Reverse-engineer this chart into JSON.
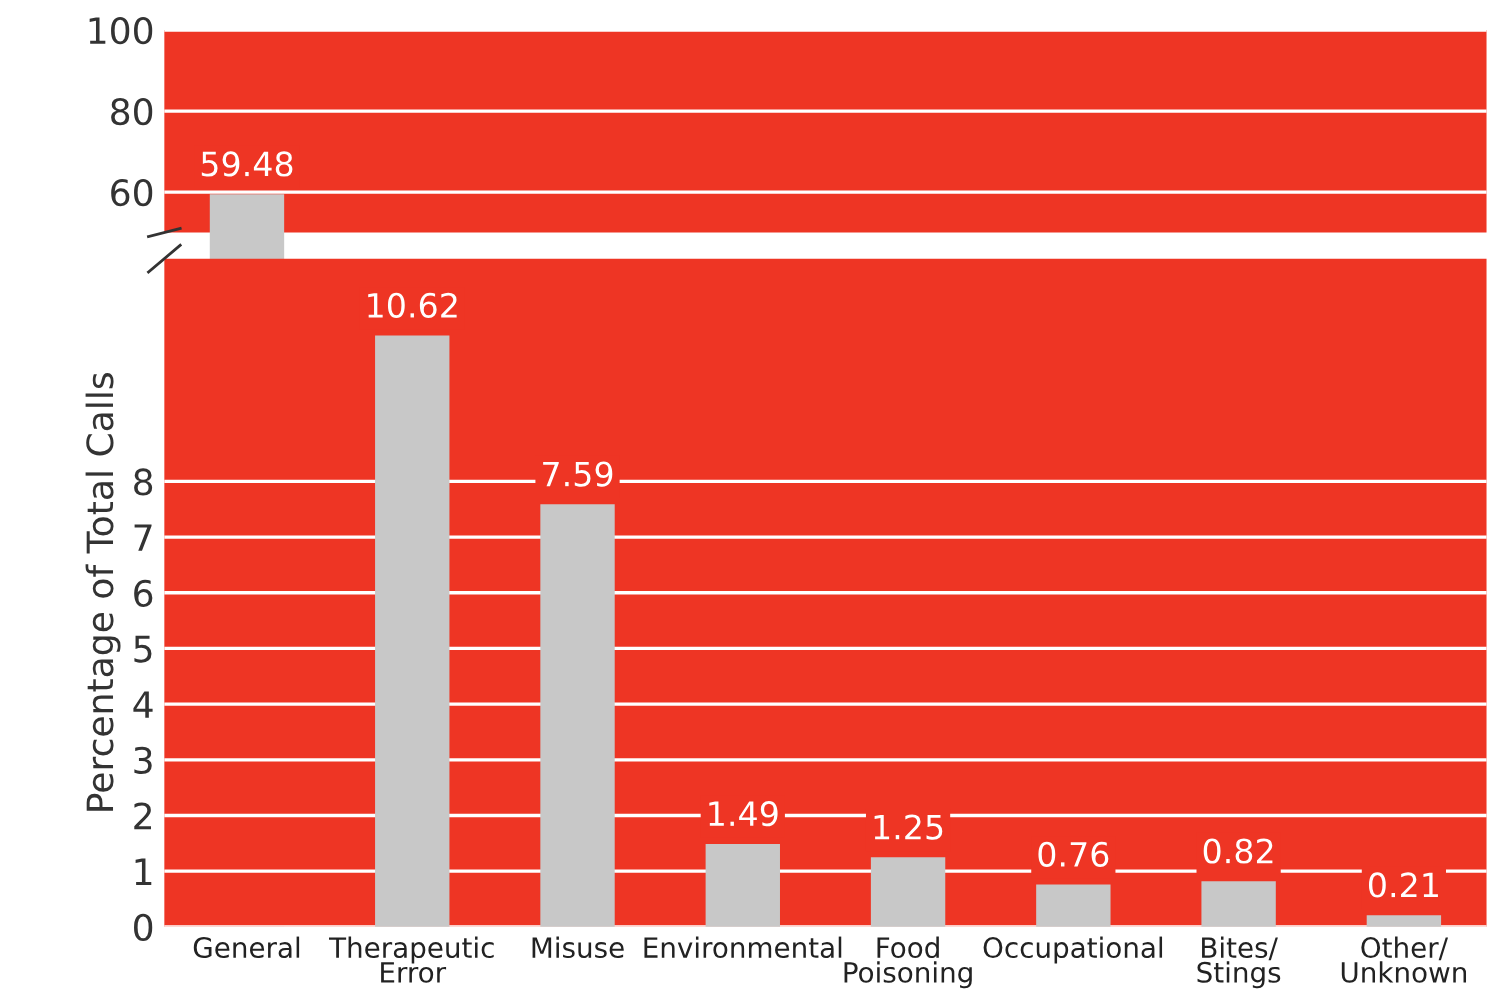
{
  "chart_data": [
    {
      "type": "bar",
      "categories": [
        null,
        null,
        null,
        null,
        null,
        null,
        null,
        null
      ],
      "color": "#c8c8c8",
      "values": [
        59.48,
        null,
        null,
        null,
        null,
        null,
        null,
        null
      ],
      "value_labels": [
        "59.48",
        null,
        null,
        null,
        null,
        null,
        null,
        null
      ],
      "ylim": [
        50,
        100
      ],
      "yticks": [
        60,
        80,
        100
      ],
      "grid": "y",
      "tick_labels": "y"
    },
    {
      "type": "bar",
      "categories": [
        "General",
        "Therapeutic\nError",
        "Misuse",
        "Environmental",
        "Food\nPoisoning",
        "Occupational",
        "Bites/\nStings",
        "Other/\nUnknown"
      ],
      "color": "#c8c8c8",
      "values": [
        null,
        10.62,
        7.59,
        1.49,
        1.25,
        0.76,
        0.82,
        0.21
      ],
      "value_labels": [
        null,
        "10.62",
        "7.59",
        "1.49",
        "1.25",
        "0.76",
        "0.82",
        "0.21"
      ],
      "ylim": [
        0,
        12
      ],
      "yticks": [
        0,
        1,
        2,
        3,
        4,
        5,
        6,
        7,
        8
      ],
      "grid": "y",
      "ylabel": "Percentage of Total Calls"
    }
  ]
}
